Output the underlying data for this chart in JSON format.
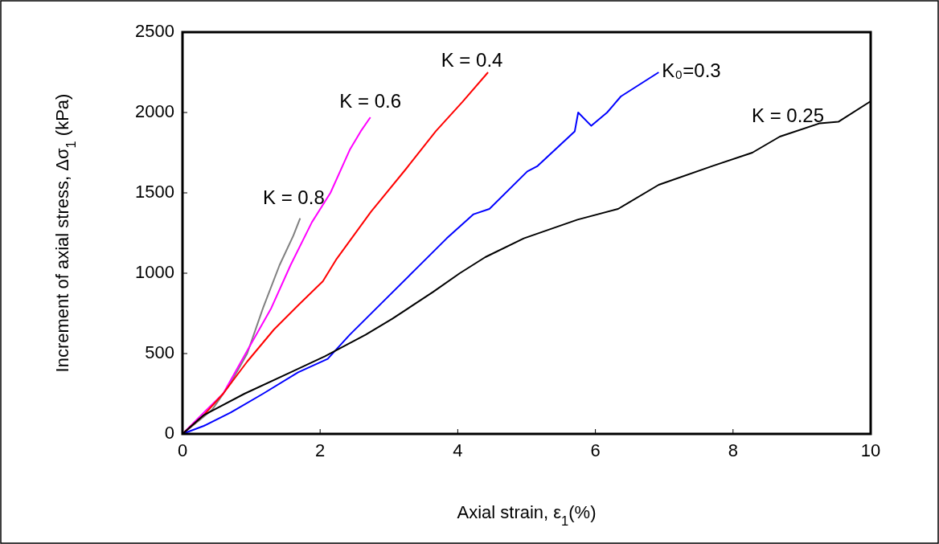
{
  "chart_data": {
    "type": "line",
    "xlabel": "Axial strain, ε$_{1}$(%)",
    "ylabel": "Increment of axial stress, Δσ$_{1}$ (kPa)",
    "xlim": [
      0,
      10
    ],
    "ylim": [
      0,
      2500
    ],
    "xticks": [
      0,
      2,
      4,
      6,
      8,
      10
    ],
    "yticks": [
      0,
      500,
      1000,
      1500,
      2000,
      2500
    ],
    "grid": false,
    "marker": "none",
    "line_style": "solid",
    "series": [
      {
        "name": "K = 0.8",
        "color": "#808080",
        "x": [
          0,
          0.43,
          0.7,
          0.94,
          1.17,
          1.41,
          1.61,
          1.71
        ],
        "values": [
          0,
          150,
          317,
          500,
          783,
          1050,
          1233,
          1342
        ]
      },
      {
        "name": "K = 0.6",
        "color": "#ff00ff",
        "x": [
          0,
          0.31,
          0.59,
          0.94,
          1.29,
          1.57,
          1.88,
          2.15,
          2.43,
          2.59,
          2.73
        ],
        "values": [
          0,
          133,
          250,
          517,
          783,
          1050,
          1317,
          1500,
          1767,
          1883,
          1970
        ]
      },
      {
        "name": "K = 0.4",
        "color": "#ff0000",
        "x": [
          0,
          0.31,
          0.59,
          0.94,
          1.33,
          1.68,
          2.04,
          2.23,
          2.74,
          3.25,
          3.68,
          4.07,
          4.44
        ],
        "values": [
          0,
          117,
          250,
          450,
          650,
          800,
          950,
          1083,
          1383,
          1650,
          1883,
          2067,
          2250
        ]
      },
      {
        "name": "K₀=0.3",
        "color": "#0000ff",
        "x": [
          0,
          0.31,
          0.7,
          1.17,
          1.68,
          2.11,
          2.43,
          2.9,
          3.37,
          3.84,
          4.23,
          4.46,
          5.01,
          5.16,
          5.7,
          5.75,
          5.94,
          6.17,
          6.37,
          6.92
        ],
        "values": [
          0,
          50,
          133,
          250,
          383,
          467,
          617,
          817,
          1017,
          1217,
          1367,
          1400,
          1633,
          1667,
          1883,
          2000,
          1917,
          2000,
          2100,
          2250
        ]
      },
      {
        "name": "K = 0.25",
        "color": "#000000",
        "x": [
          0,
          0.31,
          0.9,
          1.57,
          2.07,
          2.66,
          3.05,
          3.64,
          4.03,
          4.4,
          4.96,
          5.74,
          6.33,
          6.92,
          7.7,
          8.28,
          8.68,
          9.26,
          9.53,
          10
        ],
        "values": [
          0,
          117,
          250,
          383,
          483,
          617,
          717,
          883,
          1000,
          1100,
          1217,
          1333,
          1400,
          1550,
          1667,
          1750,
          1850,
          1933,
          1942,
          2070
        ]
      }
    ]
  }
}
